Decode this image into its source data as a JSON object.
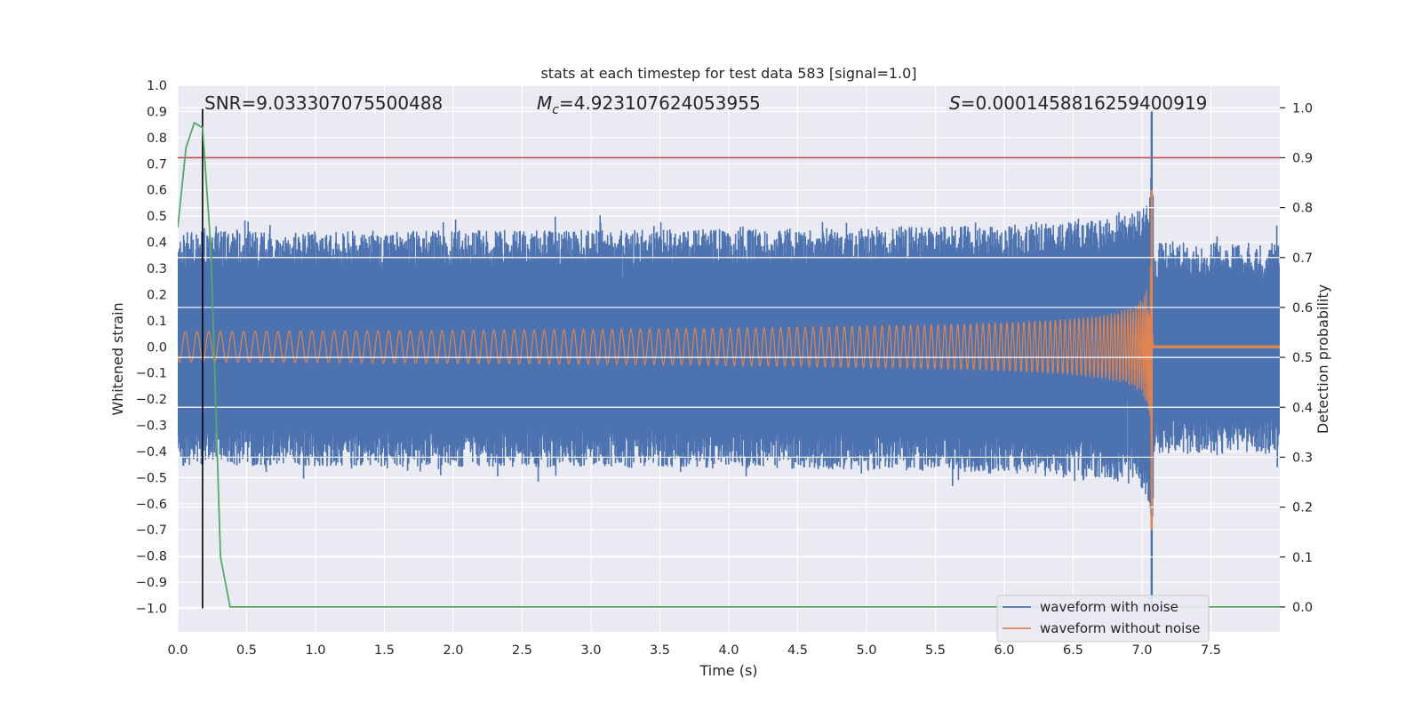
{
  "chart_data": {
    "type": "line",
    "title": "stats at each timestep for test data 583 [signal=1.0]",
    "xlabel": "Time (s)",
    "ylabel_left": "Whitened strain",
    "ylabel_right": "Detection probability",
    "xlim": [
      0.0,
      8.0
    ],
    "ylim_left": [
      -1.09,
      1.0
    ],
    "ylim_right": [
      -0.05,
      1.045
    ],
    "x_ticks": [
      "0.0",
      "0.5",
      "1.0",
      "1.5",
      "2.0",
      "2.5",
      "3.0",
      "3.5",
      "4.0",
      "4.5",
      "5.0",
      "5.5",
      "6.0",
      "6.5",
      "7.0",
      "7.5"
    ],
    "x_tick_values": [
      0.0,
      0.5,
      1.0,
      1.5,
      2.0,
      2.5,
      3.0,
      3.5,
      4.0,
      4.5,
      5.0,
      5.5,
      6.0,
      6.5,
      7.0,
      7.5
    ],
    "y_ticks_left": [
      "1.0",
      "0.9",
      "0.8",
      "0.7",
      "0.6",
      "0.5",
      "0.4",
      "0.3",
      "0.2",
      "0.1",
      "0.0",
      "−0.1",
      "−0.2",
      "−0.3",
      "−0.4",
      "−0.5",
      "−0.6",
      "−0.7",
      "−0.8",
      "−0.9",
      "−1.0"
    ],
    "y_tick_values_left": [
      1.0,
      0.9,
      0.8,
      0.7,
      0.6,
      0.5,
      0.4,
      0.3,
      0.2,
      0.1,
      0.0,
      -0.1,
      -0.2,
      -0.3,
      -0.4,
      -0.5,
      -0.6,
      -0.7,
      -0.8,
      -0.9,
      -1.0
    ],
    "y_ticks_right": [
      "1.0",
      "0.9",
      "0.8",
      "0.7",
      "0.6",
      "0.5",
      "0.4",
      "0.3",
      "0.2",
      "0.1",
      "0.0"
    ],
    "y_tick_values_right": [
      1.0,
      0.9,
      0.8,
      0.7,
      0.6,
      0.5,
      0.4,
      0.3,
      0.2,
      0.1,
      0.0
    ],
    "annotations": {
      "snr": "SNR=9.033307075500488",
      "mc_symbol": "M",
      "mc_sub": "c",
      "mc_value": "=4.923107624053955",
      "s_symbol": "S",
      "s_value": "=0.0001458816259400919"
    },
    "legend": {
      "placement": "lower-right",
      "entries": [
        "waveform with noise",
        "waveform without noise"
      ]
    },
    "series": [
      {
        "name": "waveform with noise",
        "axis": "left",
        "style": "noise",
        "color": "#4c72b0",
        "noise_amplitude_start": 0.42,
        "noise_amplitude_end": 0.42,
        "merger_time": 7.07,
        "peak_values": [
          0.9,
          -1.0
        ],
        "x_end": 8.0
      },
      {
        "name": "waveform without noise",
        "axis": "left",
        "style": "chirp",
        "color": "#dd8452",
        "amplitude_start": 0.05,
        "amplitude_peak": 0.6,
        "merger_time": 7.07,
        "peak_values": [
          0.6,
          -0.7
        ],
        "x_end": 8.0
      },
      {
        "axis": "right",
        "style": "line",
        "color": "#55a868",
        "x": [
          0.0,
          0.06,
          0.12,
          0.18,
          0.24,
          0.31,
          0.38,
          8.0
        ],
        "y": [
          0.76,
          0.92,
          0.97,
          0.96,
          0.72,
          0.1,
          0.0,
          0.0
        ]
      }
    ],
    "threshold": {
      "axis": "right",
      "value": 0.9,
      "color": "#c44e52"
    },
    "vertical_marker": {
      "x": 0.18,
      "y_from": -1.0,
      "y_to": 0.91,
      "color": "#000000"
    },
    "grid": true,
    "background_color": "#eaeaf2"
  }
}
